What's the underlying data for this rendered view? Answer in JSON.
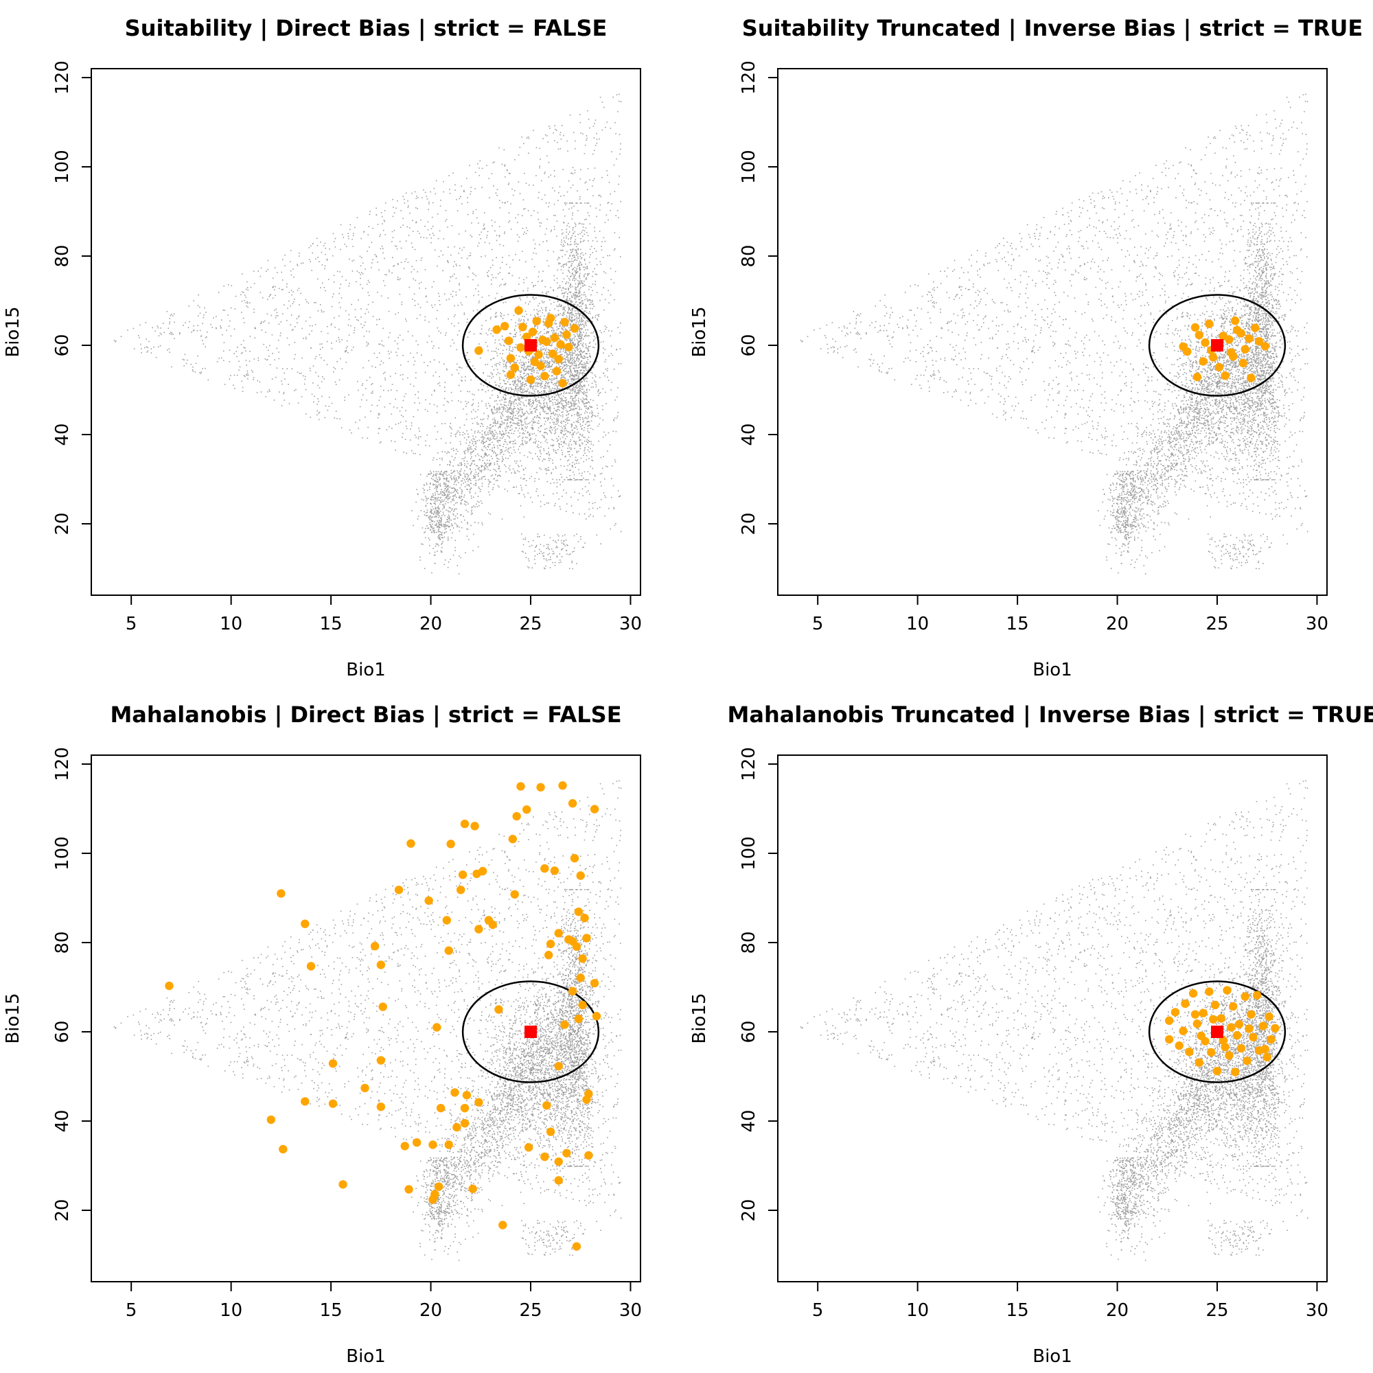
{
  "chart_data": [
    {
      "type": "scatter",
      "title": "Suitability | Direct Bias | strict = FALSE",
      "xlabel": "Bio1",
      "ylabel": "Bio15",
      "xlim": [
        3,
        30.5
      ],
      "ylim": [
        4,
        122
      ],
      "xticks": [
        5,
        10,
        15,
        20,
        25,
        30
      ],
      "yticks": [
        20,
        40,
        60,
        80,
        100,
        120
      ],
      "background_colors": {
        "points": "#9e9e9e"
      },
      "ellipse": {
        "center": [
          25,
          60
        ],
        "radius_x": 3.4,
        "radius_y": 11.3,
        "color": "#000000"
      },
      "centroid": {
        "x": 25,
        "y": 60,
        "color": "#ff0000"
      },
      "sample_color": "#ffa500",
      "samples": [
        [
          25.0,
          60.0
        ],
        [
          25.6,
          61.2
        ],
        [
          26.1,
          58.1
        ],
        [
          24.5,
          59.5
        ],
        [
          25.2,
          56.3
        ],
        [
          26.8,
          62.4
        ],
        [
          24.0,
          57.1
        ],
        [
          25.9,
          64.9
        ],
        [
          23.3,
          63.5
        ],
        [
          23.7,
          64.3
        ],
        [
          24.4,
          67.8
        ],
        [
          24.0,
          53.4
        ],
        [
          26.6,
          51.5
        ],
        [
          22.4,
          58.8
        ],
        [
          26.0,
          66.1
        ],
        [
          25.5,
          55.4
        ],
        [
          26.5,
          60.2
        ],
        [
          25.1,
          63.0
        ],
        [
          24.8,
          61.9
        ],
        [
          26.9,
          59.6
        ],
        [
          25.4,
          57.9
        ],
        [
          24.2,
          55.0
        ],
        [
          26.3,
          54.2
        ],
        [
          25.7,
          53.1
        ],
        [
          27.2,
          63.8
        ],
        [
          26.7,
          65.2
        ],
        [
          24.6,
          64.1
        ],
        [
          25.8,
          60.8
        ],
        [
          26.2,
          61.7
        ],
        [
          24.9,
          58.7
        ],
        [
          25.3,
          65.4
        ],
        [
          26.4,
          56.9
        ],
        [
          25.0,
          52.3
        ],
        [
          23.9,
          61.0
        ]
      ]
    },
    {
      "type": "scatter",
      "title": "Suitability Truncated | Inverse Bias | strict = TRUE",
      "xlabel": "Bio1",
      "ylabel": "Bio15",
      "xlim": [
        3,
        30.5
      ],
      "ylim": [
        4,
        122
      ],
      "xticks": [
        5,
        10,
        15,
        20,
        25,
        30
      ],
      "yticks": [
        20,
        40,
        60,
        80,
        100,
        120
      ],
      "background_colors": {
        "points": "#9e9e9e"
      },
      "ellipse": {
        "center": [
          25,
          60
        ],
        "radius_x": 3.4,
        "radius_y": 11.3,
        "color": "#000000"
      },
      "centroid": {
        "x": 25,
        "y": 60,
        "color": "#ff0000"
      },
      "sample_color": "#ffa500",
      "samples": [
        [
          25.0,
          60.0
        ],
        [
          24.1,
          62.3
        ],
        [
          25.7,
          58.4
        ],
        [
          26.6,
          61.5
        ],
        [
          23.5,
          58.6
        ],
        [
          24.6,
          64.8
        ],
        [
          26.3,
          56.0
        ],
        [
          25.4,
          53.2
        ],
        [
          27.4,
          59.8
        ],
        [
          27.1,
          60.9
        ],
        [
          24.0,
          52.9
        ],
        [
          26.7,
          52.7
        ],
        [
          23.3,
          59.7
        ],
        [
          25.9,
          65.5
        ],
        [
          24.8,
          57.3
        ],
        [
          25.3,
          62.1
        ],
        [
          26.0,
          63.4
        ],
        [
          24.4,
          60.6
        ],
        [
          25.8,
          57.5
        ],
        [
          26.4,
          59.1
        ],
        [
          24.3,
          56.4
        ],
        [
          25.1,
          55.1
        ],
        [
          23.9,
          64.0
        ],
        [
          26.9,
          63.9
        ],
        [
          25.6,
          61.3
        ],
        [
          24.7,
          58.9
        ],
        [
          26.2,
          62.7
        ]
      ]
    },
    {
      "type": "scatter",
      "title": "Mahalanobis | Direct Bias | strict = FALSE",
      "xlabel": "Bio1",
      "ylabel": "Bio15",
      "xlim": [
        3,
        30.5
      ],
      "ylim": [
        4,
        122
      ],
      "xticks": [
        5,
        10,
        15,
        20,
        25,
        30
      ],
      "yticks": [
        20,
        40,
        60,
        80,
        100,
        120
      ],
      "background_colors": {
        "points": "#9e9e9e"
      },
      "ellipse": {
        "center": [
          25,
          60
        ],
        "radius_x": 3.4,
        "radius_y": 11.3,
        "color": "#000000"
      },
      "centroid": {
        "x": 25,
        "y": 60,
        "color": "#ff0000"
      },
      "sample_color": "#ffa500",
      "samples": [
        [
          6.9,
          70.3
        ],
        [
          12.5,
          91.0
        ],
        [
          13.7,
          84.2
        ],
        [
          14.0,
          74.7
        ],
        [
          12.0,
          40.3
        ],
        [
          12.6,
          33.7
        ],
        [
          13.7,
          44.4
        ],
        [
          15.1,
          52.9
        ],
        [
          15.1,
          43.9
        ],
        [
          15.6,
          25.8
        ],
        [
          16.7,
          47.4
        ],
        [
          17.2,
          79.2
        ],
        [
          17.5,
          75.0
        ],
        [
          17.6,
          65.6
        ],
        [
          17.5,
          53.6
        ],
        [
          17.5,
          43.2
        ],
        [
          18.4,
          91.8
        ],
        [
          18.7,
          34.4
        ],
        [
          18.9,
          24.7
        ],
        [
          19.0,
          102.2
        ],
        [
          19.3,
          35.2
        ],
        [
          19.9,
          89.4
        ],
        [
          20.1,
          34.7
        ],
        [
          20.1,
          22.4
        ],
        [
          20.2,
          23.6
        ],
        [
          20.4,
          25.3
        ],
        [
          20.3,
          61.0
        ],
        [
          20.5,
          42.9
        ],
        [
          20.8,
          85.0
        ],
        [
          20.9,
          78.2
        ],
        [
          20.9,
          34.7
        ],
        [
          21.0,
          102.1
        ],
        [
          21.2,
          46.4
        ],
        [
          21.3,
          38.6
        ],
        [
          21.5,
          91.8
        ],
        [
          21.6,
          95.2
        ],
        [
          21.7,
          106.6
        ],
        [
          21.7,
          39.5
        ],
        [
          21.7,
          42.9
        ],
        [
          21.8,
          45.8
        ],
        [
          22.1,
          24.8
        ],
        [
          22.2,
          106.1
        ],
        [
          22.3,
          95.4
        ],
        [
          22.4,
          44.2
        ],
        [
          22.4,
          83.0
        ],
        [
          22.6,
          96.0
        ],
        [
          22.9,
          85.0
        ],
        [
          23.1,
          84.0
        ],
        [
          23.4,
          65.0
        ],
        [
          23.6,
          16.7
        ],
        [
          24.1,
          103.2
        ],
        [
          24.2,
          90.8
        ],
        [
          24.3,
          108.3
        ],
        [
          24.5,
          115.0
        ],
        [
          24.8,
          109.8
        ],
        [
          24.9,
          34.1
        ],
        [
          25.5,
          114.8
        ],
        [
          25.7,
          96.6
        ],
        [
          25.7,
          32.0
        ],
        [
          25.8,
          43.5
        ],
        [
          25.9,
          77.2
        ],
        [
          26.0,
          79.7
        ],
        [
          26.0,
          37.6
        ],
        [
          26.2,
          96.1
        ],
        [
          26.4,
          82.1
        ],
        [
          26.4,
          52.3
        ],
        [
          26.4,
          30.9
        ],
        [
          26.4,
          26.7
        ],
        [
          26.6,
          115.2
        ],
        [
          26.7,
          61.6
        ],
        [
          26.8,
          32.8
        ],
        [
          26.9,
          80.7
        ],
        [
          27.1,
          69.1
        ],
        [
          27.1,
          111.2
        ],
        [
          27.1,
          80.3
        ],
        [
          27.2,
          98.9
        ],
        [
          27.3,
          11.9
        ],
        [
          27.3,
          79.1
        ],
        [
          27.4,
          86.9
        ],
        [
          27.4,
          62.9
        ],
        [
          27.5,
          95.0
        ],
        [
          27.6,
          76.4
        ],
        [
          27.7,
          85.5
        ],
        [
          27.8,
          81.0
        ],
        [
          27.8,
          44.8
        ],
        [
          27.9,
          46.1
        ],
        [
          27.9,
          32.3
        ],
        [
          28.2,
          109.9
        ],
        [
          28.2,
          70.9
        ],
        [
          28.3,
          63.5
        ],
        [
          27.6,
          66.0
        ],
        [
          27.5,
          72.1
        ]
      ]
    },
    {
      "type": "scatter",
      "title": "Mahalanobis Truncated | Inverse Bias | strict = TRUE",
      "xlabel": "Bio1",
      "ylabel": "Bio15",
      "xlim": [
        3,
        30.5
      ],
      "ylim": [
        4,
        122
      ],
      "xticks": [
        5,
        10,
        15,
        20,
        25,
        30
      ],
      "yticks": [
        20,
        40,
        60,
        80,
        100,
        120
      ],
      "background_colors": {
        "points": "#9e9e9e"
      },
      "ellipse": {
        "center": [
          25,
          60
        ],
        "radius_x": 3.4,
        "radius_y": 11.3,
        "color": "#000000"
      },
      "centroid": {
        "x": 25,
        "y": 60,
        "color": "#ff0000"
      },
      "sample_color": "#ffa500",
      "samples": [
        [
          25.0,
          60.0
        ],
        [
          22.6,
          62.5
        ],
        [
          22.6,
          58.3
        ],
        [
          22.9,
          64.4
        ],
        [
          23.1,
          56.9
        ],
        [
          23.4,
          66.3
        ],
        [
          23.6,
          55.5
        ],
        [
          23.8,
          68.6
        ],
        [
          24.0,
          61.8
        ],
        [
          24.1,
          53.1
        ],
        [
          24.3,
          64.2
        ],
        [
          24.4,
          57.9
        ],
        [
          24.6,
          69.0
        ],
        [
          24.7,
          55.4
        ],
        [
          24.9,
          66.0
        ],
        [
          25.0,
          51.2
        ],
        [
          25.2,
          63.0
        ],
        [
          25.3,
          58.1
        ],
        [
          25.5,
          69.3
        ],
        [
          25.6,
          54.7
        ],
        [
          25.8,
          65.7
        ],
        [
          25.9,
          51.0
        ],
        [
          26.1,
          61.7
        ],
        [
          26.2,
          56.3
        ],
        [
          26.4,
          67.9
        ],
        [
          26.5,
          53.5
        ],
        [
          26.7,
          63.9
        ],
        [
          26.8,
          58.8
        ],
        [
          27.0,
          68.2
        ],
        [
          27.1,
          55.8
        ],
        [
          27.3,
          61.3
        ],
        [
          27.4,
          56.1
        ],
        [
          27.6,
          63.4
        ],
        [
          27.7,
          58.3
        ],
        [
          27.9,
          60.8
        ],
        [
          27.5,
          54.3
        ],
        [
          23.3,
          60.2
        ],
        [
          24.2,
          59.1
        ],
        [
          25.7,
          61.0
        ],
        [
          26.0,
          59.2
        ],
        [
          24.8,
          62.8
        ],
        [
          25.4,
          56.6
        ],
        [
          26.6,
          60.7
        ],
        [
          23.9,
          63.9
        ]
      ]
    }
  ]
}
